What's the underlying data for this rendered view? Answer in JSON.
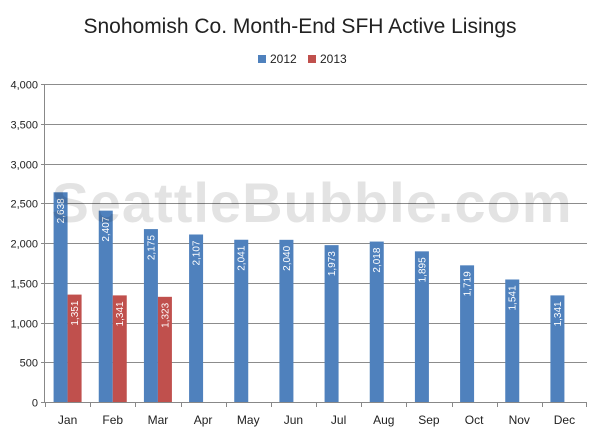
{
  "chart_data": {
    "type": "bar",
    "title": "Snohomish Co. Month-End SFH Active Lisings",
    "watermark": "SeattleBubble.com",
    "categories": [
      "Jan",
      "Feb",
      "Mar",
      "Apr",
      "May",
      "Jun",
      "Jul",
      "Aug",
      "Sep",
      "Oct",
      "Nov",
      "Dec"
    ],
    "series": [
      {
        "name": "2012",
        "color": "#4f81bd",
        "values": [
          2638,
          2407,
          2175,
          2107,
          2041,
          2040,
          1973,
          2018,
          1895,
          1719,
          1541,
          1341
        ],
        "labels": [
          "2,638",
          "2,407",
          "2,175",
          "2,107",
          "2,041",
          "2,040",
          "1,973",
          "2,018",
          "1,895",
          "1,719",
          "1,541",
          "1,341"
        ]
      },
      {
        "name": "2013",
        "color": "#c0504d",
        "values": [
          1351,
          1341,
          1323,
          null,
          null,
          null,
          null,
          null,
          null,
          null,
          null,
          null
        ],
        "labels": [
          "1,351",
          "1,341",
          "1,323",
          "",
          "",
          "",
          "",
          "",
          "",
          "",
          "",
          ""
        ]
      }
    ],
    "ylim": [
      0,
      4000
    ],
    "yticks": [
      0,
      500,
      1000,
      1500,
      2000,
      2500,
      3000,
      3500,
      4000
    ],
    "ytick_labels": [
      "0",
      "500",
      "1,000",
      "1,500",
      "2,000",
      "2,500",
      "3,000",
      "3,500",
      "4,000"
    ],
    "grid": true,
    "legend": "top-center"
  }
}
